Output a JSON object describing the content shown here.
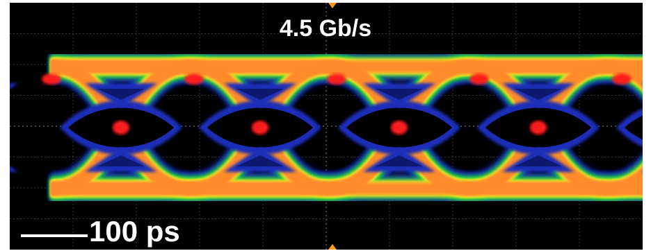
{
  "screen": {
    "data_rate_label": "4.5 Gb/s",
    "scale_bar_label": "100 ps"
  },
  "colors": {
    "background": "#000000",
    "low_density": "#1c2fb8",
    "mid_density": "#1ecf3a",
    "high_density": "#ff8c2a",
    "peak_density": "#ff1a1a",
    "trigger_marker": "#ff9a1a"
  },
  "display": {
    "type": "eye-diagram",
    "persistence": "color-graded"
  }
}
